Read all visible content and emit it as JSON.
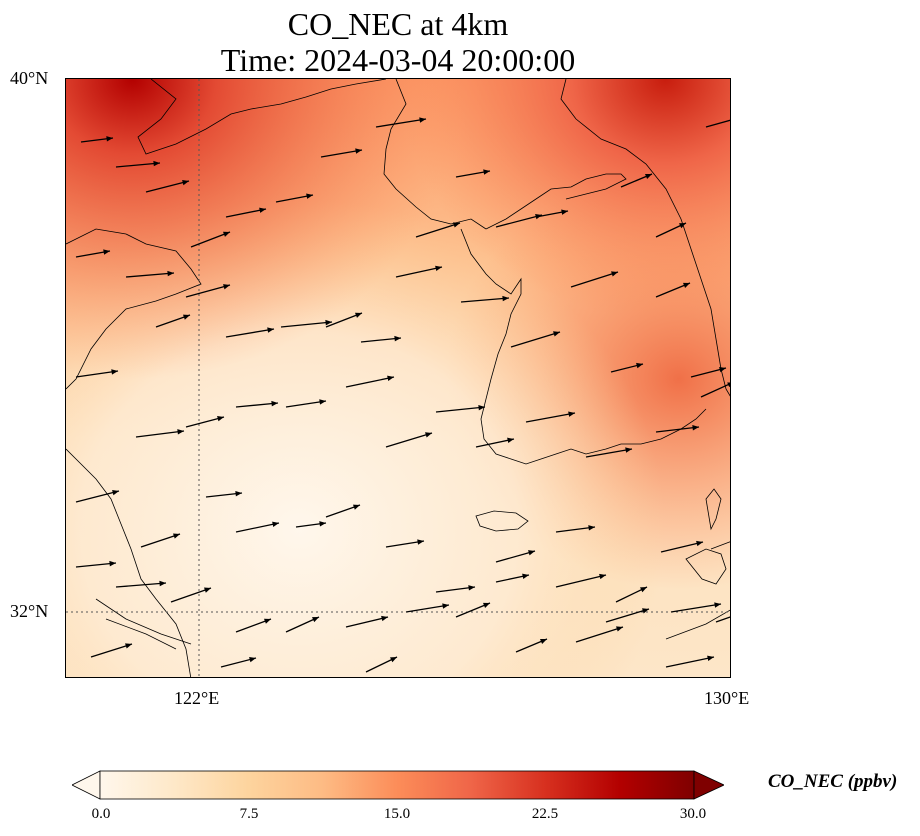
{
  "title": {
    "line1": "CO_NEC at 4km",
    "line2": "Time: 2024-03-04 20:00:00"
  },
  "axes": {
    "lat_labels": [
      "40°N",
      "32°N"
    ],
    "lon_labels": [
      "122°E",
      "130°E"
    ],
    "lat_range": [
      31,
      40
    ],
    "lon_range": [
      120,
      130
    ],
    "gridlines": {
      "lat": [
        32
      ],
      "lon": [
        122
      ],
      "style": "dotted"
    }
  },
  "colorbar": {
    "label": "CO_NEC (ppbv)",
    "ticks": [
      "0.0",
      "7.5",
      "15.0",
      "22.5",
      "30.0"
    ],
    "range": [
      0,
      30
    ],
    "extend": "both",
    "colormap": "OrRd",
    "colors": [
      "#fff7ec",
      "#fee8c8",
      "#fdd49e",
      "#fdbb84",
      "#fc8d59",
      "#ef6548",
      "#d7301f",
      "#b30000",
      "#7f0000"
    ]
  },
  "map": {
    "field": "CO_NEC",
    "height": "4km",
    "time": "2024-03-04 20:00:00",
    "features": [
      "coastlines",
      "wind-vectors"
    ],
    "wind_direction": "westerly to west-southwesterly"
  }
}
